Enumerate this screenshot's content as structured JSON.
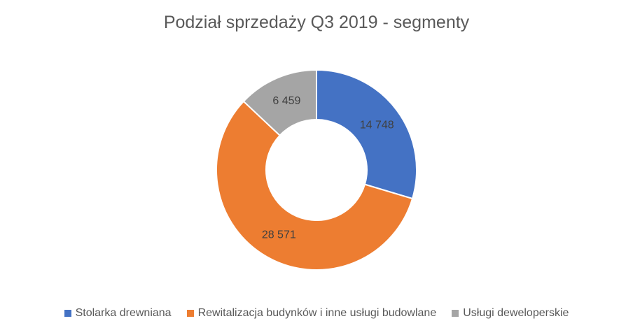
{
  "chart_data": {
    "type": "pie",
    "title": "Podział sprzedaży Q3 2019 - segmenty",
    "donut": true,
    "categories": [
      "Stolarka drewniana",
      "Rewitalizacja budynków i inne usługi budowlane",
      "Usługi deweloperskie"
    ],
    "values": [
      14748,
      28571,
      6459
    ],
    "data_labels": [
      "14 748",
      "28 571",
      "6 459"
    ],
    "colors": [
      "#4472C4",
      "#ED7D31",
      "#A5A5A5"
    ],
    "legend_position": "bottom"
  }
}
